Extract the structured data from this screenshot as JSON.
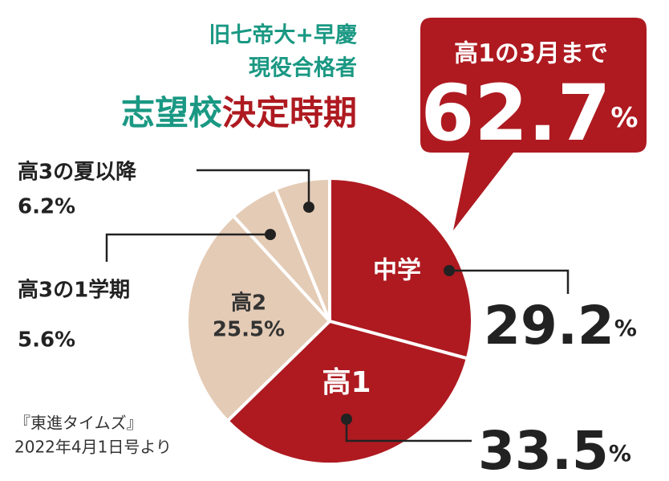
{
  "chart_data": {
    "type": "pie",
    "subtitle": [
      "旧七帝大+早慶",
      "現役合格者"
    ],
    "title": [
      "志望校",
      "決定時期"
    ],
    "categories": [
      "中学",
      "高1",
      "高2",
      "高3の1学期",
      "高3の夏以降"
    ],
    "values": [
      29.2,
      33.5,
      25.5,
      5.6,
      6.2
    ],
    "value_labels": [
      "29.2%",
      "33.5%",
      "25.5%",
      "5.6%",
      "6.2%"
    ],
    "colors": [
      "#ae1a20",
      "#ae1a20",
      "#e4cbb5",
      "#e4cbb5",
      "#e4cbb5"
    ],
    "callout": {
      "title": "高1の3月まで",
      "label": "62.7%"
    },
    "source": [
      "『東進タイムズ』",
      "2022年4月1日号より"
    ]
  }
}
